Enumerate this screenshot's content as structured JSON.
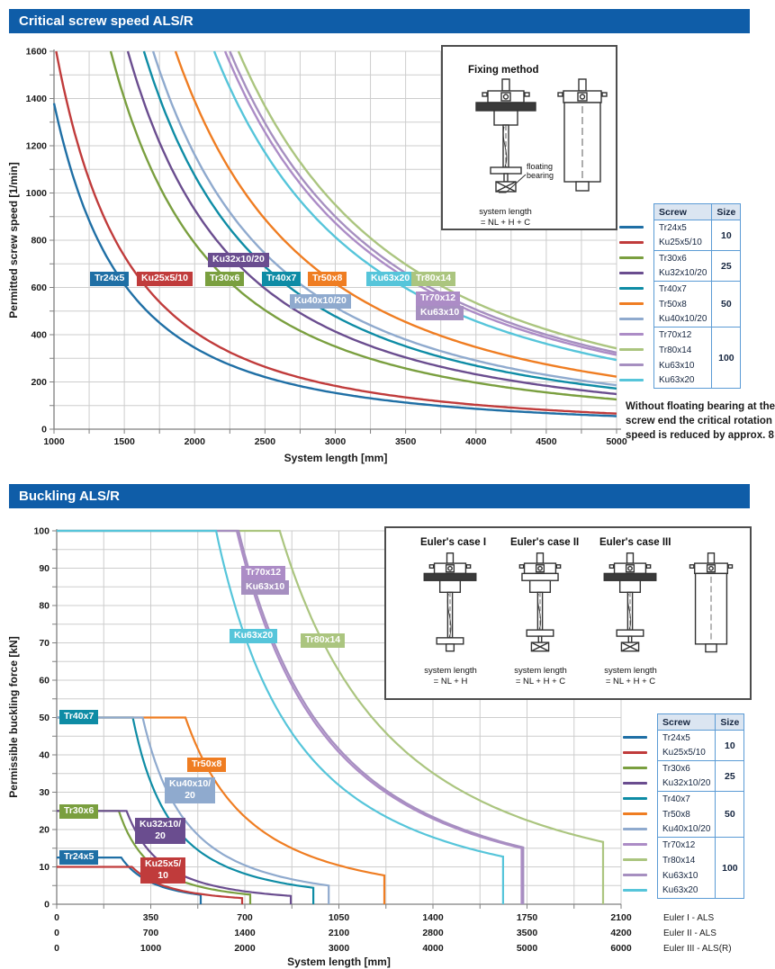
{
  "page": {
    "background": "#ffffff",
    "header_bg": "#0f5da8"
  },
  "chart_data": [
    {
      "type": "line",
      "title": "Critical screw speed ALS/R",
      "xlabel": "System length [mm]",
      "ylabel": "Permitted screw speed [1/min]",
      "xlim": [
        1000,
        5000
      ],
      "ylim": [
        0,
        1600
      ],
      "x_ticks": [
        1000,
        1500,
        2000,
        2500,
        3000,
        3500,
        4000,
        4500,
        5000
      ],
      "y_ticks": [
        0,
        200,
        400,
        600,
        800,
        1000,
        1200,
        1400,
        1600
      ],
      "x_grid_step": 250,
      "y_grid_step": 100,
      "grid": true,
      "legend_position": "right",
      "model": "speed = A / L^2, clipped at ylim max",
      "series": [
        {
          "name": "Tr24x5",
          "color": "#1f6fa5",
          "A": 1380000000.0
        },
        {
          "name": "Ku25x5/10",
          "color": "#c03b3b",
          "A": 1650000000.0
        },
        {
          "name": "Tr30x6",
          "color": "#7a9f3f",
          "A": 3150000000.0
        },
        {
          "name": "Ku32x10/20",
          "color": "#6a4d8f",
          "A": 3720000000.0
        },
        {
          "name": "Tr40x7",
          "color": "#0e8ca5",
          "A": 4300000000.0
        },
        {
          "name": "Tr50x8",
          "color": "#ef7d22",
          "A": 5560000000.0
        },
        {
          "name": "Ku40x10/20",
          "color": "#8faace",
          "A": 4650000000.0
        },
        {
          "name": "Tr70x12",
          "color": "#ac8cc6",
          "A": 7860000000.0
        },
        {
          "name": "Tr80x14",
          "color": "#abc57f",
          "A": 8550000000.0
        },
        {
          "name": "Ku63x10",
          "color": "#a68fc0",
          "A": 8100000000.0
        },
        {
          "name": "Ku63x20",
          "color": "#56c5da",
          "A": 7320000000.0
        }
      ],
      "labels": [
        {
          "text": [
            "Tr24x5"
          ],
          "color": "#1f6fa5",
          "px": [
            100,
            302
          ]
        },
        {
          "text": [
            "Ku25x5/10"
          ],
          "color": "#c03b3b",
          "px": [
            152,
            302
          ]
        },
        {
          "text": [
            "Tr30x6"
          ],
          "color": "#7a9f3f",
          "px": [
            228,
            302
          ]
        },
        {
          "text": [
            "Ku32x10/20"
          ],
          "color": "#6a4d8f",
          "px": [
            231,
            281
          ]
        },
        {
          "text": [
            "Tr40x7"
          ],
          "color": "#0e8ca5",
          "px": [
            291,
            302
          ]
        },
        {
          "text": [
            "Tr50x8"
          ],
          "color": "#ef7d22",
          "px": [
            342,
            302
          ]
        },
        {
          "text": [
            "Ku40x10/20"
          ],
          "color": "#8faace",
          "px": [
            322,
            327
          ]
        },
        {
          "text": [
            "Ku63x20"
          ],
          "color": "#56c5da",
          "px": [
            407,
            302
          ]
        },
        {
          "text": [
            "Tr80x14"
          ],
          "color": "#abc57f",
          "px": [
            457,
            302
          ]
        },
        {
          "text": [
            "Tr70x12"
          ],
          "color": "#ac8cc6",
          "px": [
            462,
            324
          ]
        },
        {
          "text": [
            "Ku63x10"
          ],
          "color": "#a68fc0",
          "px": [
            462,
            340
          ]
        }
      ]
    },
    {
      "type": "line",
      "title": "Buckling ALS/R",
      "xlabel": "System length [mm]",
      "ylabel": "Permissible buckling force [kN]",
      "xlim": [
        0,
        2100
      ],
      "ylim": [
        0,
        100
      ],
      "y_ticks": [
        0,
        10,
        20,
        30,
        40,
        50,
        60,
        70,
        80,
        90,
        100
      ],
      "x_grid_step": 175,
      "y_grid_step": 5,
      "grid": true,
      "x_axis_rows": [
        {
          "label": "Euler I - ALS",
          "ticks": [
            0,
            350,
            700,
            1050,
            1400,
            1750,
            2100
          ]
        },
        {
          "label": "Euler II -  ALS",
          "ticks": [
            0,
            700,
            1400,
            2100,
            2800,
            3500,
            4200
          ]
        },
        {
          "label": "Euler III - ALS(R)",
          "ticks": [
            0,
            1000,
            2000,
            3000,
            4000,
            5000,
            6000
          ]
        }
      ],
      "model": "F = Fmax plateau to L1, then Fmax*L1^2/L^2 to Lend, then vertical drop to 0 (L on Euler I scale)",
      "series": [
        {
          "name": "Tr24x5",
          "color": "#1f6fa5",
          "fmax": 12.5,
          "l1": 240,
          "lend": 536
        },
        {
          "name": "Ku25x5/10",
          "color": "#c03b3b",
          "fmax": 10,
          "l1": 280,
          "lend": 690
        },
        {
          "name": "Tr30x6",
          "color": "#7a9f3f",
          "fmax": 25,
          "l1": 231,
          "lend": 720
        },
        {
          "name": "Ku32x10/20",
          "color": "#6a4d8f",
          "fmax": 25,
          "l1": 260,
          "lend": 871
        },
        {
          "name": "Tr40x7",
          "color": "#0e8ca5",
          "fmax": 50,
          "l1": 283,
          "lend": 955
        },
        {
          "name": "Tr50x8",
          "color": "#ef7d22",
          "fmax": 50,
          "l1": 479,
          "lend": 1219
        },
        {
          "name": "Ku40x10/20",
          "color": "#8faace",
          "fmax": 50,
          "l1": 320,
          "lend": 1012
        },
        {
          "name": "Tr70x12",
          "color": "#ac8cc6",
          "fmax": 100,
          "l1": 670,
          "lend": 1730
        },
        {
          "name": "Tr80x14",
          "color": "#abc57f",
          "fmax": 100,
          "l1": 830,
          "lend": 2033
        },
        {
          "name": "Ku63x10",
          "color": "#a68fc0",
          "fmax": 100,
          "l1": 677,
          "lend": 1736
        },
        {
          "name": "Ku63x20",
          "color": "#56c5da",
          "fmax": 100,
          "l1": 593,
          "lend": 1661
        }
      ],
      "labels": [
        {
          "text": [
            "Tr70x12"
          ],
          "color": "#ac8cc6",
          "px": [
            268,
            629
          ]
        },
        {
          "text": [
            "Ku63x10"
          ],
          "color": "#a68fc0",
          "px": [
            268,
            645
          ]
        },
        {
          "text": [
            "Ku63x20"
          ],
          "color": "#56c5da",
          "px": [
            255,
            699
          ]
        },
        {
          "text": [
            "Tr80x14"
          ],
          "color": "#abc57f",
          "px": [
            334,
            704
          ]
        },
        {
          "text": [
            "Tr40x7"
          ],
          "color": "#0e8ca5",
          "px": [
            66,
            789
          ]
        },
        {
          "text": [
            "Tr50x8"
          ],
          "color": "#ef7d22",
          "px": [
            208,
            842
          ]
        },
        {
          "text": [
            "Ku40x10/",
            "20"
          ],
          "color": "#8faace",
          "px": [
            183,
            864
          ]
        },
        {
          "text": [
            "Tr30x6"
          ],
          "color": "#7a9f3f",
          "px": [
            66,
            894
          ]
        },
        {
          "text": [
            "Ku32x10/",
            "20"
          ],
          "color": "#6a4d8f",
          "px": [
            150,
            909
          ]
        },
        {
          "text": [
            "Tr24x5"
          ],
          "color": "#1f6fa5",
          "px": [
            66,
            945
          ]
        },
        {
          "text": [
            "Ku25x5/",
            "10"
          ],
          "color": "#c03b3b",
          "px": [
            156,
            953
          ]
        }
      ]
    }
  ],
  "legend": {
    "header": {
      "screw": "Screw",
      "size": "Size"
    },
    "groups": [
      {
        "size": "10",
        "screws": [
          "Tr24x5",
          "Ku25x5/10"
        ]
      },
      {
        "size": "25",
        "screws": [
          "Tr30x6",
          "Ku32x10/20"
        ]
      },
      {
        "size": "50",
        "screws": [
          "Tr40x7",
          "Tr50x8",
          "Ku40x10/20"
        ]
      },
      {
        "size": "100",
        "screws": [
          "Tr70x12",
          "Tr80x14",
          "Ku63x10",
          "Ku63x20"
        ]
      }
    ],
    "colors": {
      "Tr24x5": "#1f6fa5",
      "Ku25x5/10": "#c03b3b",
      "Tr30x6": "#7a9f3f",
      "Ku32x10/20": "#6a4d8f",
      "Tr40x7": "#0e8ca5",
      "Tr50x8": "#ef7d22",
      "Ku40x10/20": "#8faace",
      "Tr70x12": "#ac8cc6",
      "Tr80x14": "#abc57f",
      "Ku63x10": "#a68fc0",
      "Ku63x20": "#56c5da"
    }
  },
  "inset_fixing": {
    "title": "Fixing method",
    "floating_bearing_label": [
      "floating",
      "bearing"
    ],
    "caption": [
      "system length",
      "= NL + H + C"
    ]
  },
  "inset_euler": {
    "cases": [
      {
        "title": "Euler's case I",
        "caption": [
          "system length",
          "= NL + H"
        ]
      },
      {
        "title": "Euler's case II",
        "caption": [
          "system length",
          "= NL + H + C"
        ]
      },
      {
        "title": "Euler's case III",
        "caption": [
          "system length",
          "= NL + H + C"
        ]
      }
    ]
  },
  "note_lines": [
    "Without floating bearing at the",
    "screw end the critical rotation",
    "speed is reduced by approx. 8"
  ]
}
